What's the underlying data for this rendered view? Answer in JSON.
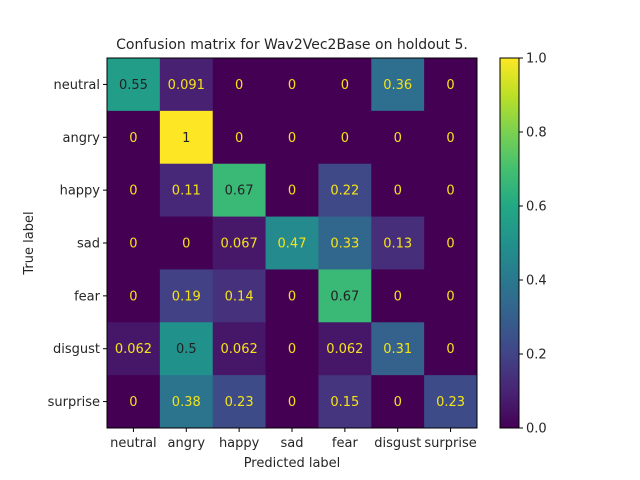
{
  "chart_data": {
    "type": "heatmap",
    "title": "Confusion matrix for Wav2Vec2Base on holdout 5.",
    "xlabel": "Predicted label",
    "ylabel": "True label",
    "x_categories": [
      "neutral",
      "angry",
      "happy",
      "sad",
      "fear",
      "disgust",
      "surprise"
    ],
    "y_categories": [
      "neutral",
      "angry",
      "happy",
      "sad",
      "fear",
      "disgust",
      "surprise"
    ],
    "values": [
      [
        0.55,
        0.091,
        0,
        0,
        0,
        0.36,
        0
      ],
      [
        0,
        1,
        0,
        0,
        0,
        0,
        0
      ],
      [
        0,
        0.11,
        0.67,
        0,
        0.22,
        0,
        0
      ],
      [
        0,
        0,
        0.067,
        0.47,
        0.33,
        0.13,
        0
      ],
      [
        0,
        0.19,
        0.14,
        0,
        0.67,
        0,
        0
      ],
      [
        0.062,
        0.5,
        0.062,
        0,
        0.062,
        0.31,
        0
      ],
      [
        0,
        0.38,
        0.23,
        0,
        0.15,
        0,
        0.23
      ]
    ],
    "cell_labels": [
      [
        "0.55",
        "0.091",
        "0",
        "0",
        "0",
        "0.36",
        "0"
      ],
      [
        "0",
        "1",
        "0",
        "0",
        "0",
        "0",
        "0"
      ],
      [
        "0",
        "0.11",
        "0.67",
        "0",
        "0.22",
        "0",
        "0"
      ],
      [
        "0",
        "0",
        "0.067",
        "0.47",
        "0.33",
        "0.13",
        "0"
      ],
      [
        "0",
        "0.19",
        "0.14",
        "0",
        "0.67",
        "0",
        "0"
      ],
      [
        "0.062",
        "0.5",
        "0.062",
        "0",
        "0.062",
        "0.31",
        "0"
      ],
      [
        "0",
        "0.38",
        "0.23",
        "0",
        "0.15",
        "0",
        "0.23"
      ]
    ],
    "colormap": "viridis",
    "vmin": 0,
    "vmax": 1,
    "colorbar_ticks": [
      "0.0",
      "0.2",
      "0.4",
      "0.6",
      "0.8",
      "1.0"
    ],
    "text_color_light": "#f5e31a",
    "text_color_dark": "#222222"
  }
}
